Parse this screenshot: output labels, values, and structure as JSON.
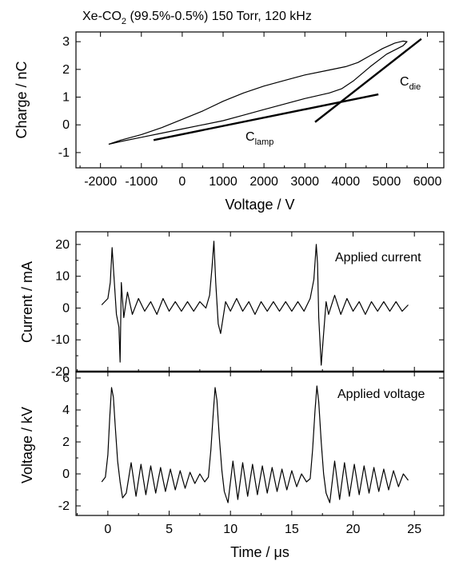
{
  "figure": {
    "title_parts": [
      "Xe-CO",
      "2",
      " (99.5%-0.5%) 150 Torr, 120 kHz"
    ]
  },
  "chart_data": [
    {
      "type": "line",
      "panel": "charge-voltage",
      "xlabel": "Voltage / V",
      "ylabel": "Charge / nC",
      "xlim": [
        -2600,
        6400
      ],
      "ylim": [
        -1.55,
        3.35
      ],
      "xticks": [
        -2000,
        -1000,
        0,
        1000,
        2000,
        3000,
        4000,
        5000,
        6000
      ],
      "yticks": [
        -1,
        0,
        1,
        2,
        3
      ],
      "grid": false,
      "series": [
        {
          "values_desc": "Lissajous loop (Q-V)",
          "x": [
            -1800,
            -1500,
            -1000,
            -500,
            0,
            500,
            1000,
            1500,
            2000,
            2500,
            3000,
            3500,
            4000,
            4300,
            4600,
            4900,
            5200,
            5400,
            5500,
            5400,
            5000,
            4600,
            4200,
            3900,
            3600,
            3300,
            3000,
            2500,
            2000,
            1500,
            1000,
            500,
            0,
            -500,
            -1000,
            -1500,
            -1800
          ],
          "y": [
            -0.7,
            -0.55,
            -0.35,
            -0.1,
            0.2,
            0.5,
            0.85,
            1.15,
            1.4,
            1.6,
            1.8,
            1.95,
            2.1,
            2.25,
            2.5,
            2.75,
            2.95,
            3.02,
            3.0,
            2.85,
            2.55,
            2.1,
            1.6,
            1.3,
            1.15,
            1.05,
            0.95,
            0.75,
            0.55,
            0.35,
            0.15,
            0.0,
            -0.15,
            -0.3,
            -0.45,
            -0.6,
            -0.7
          ]
        }
      ],
      "fit_lines": [
        {
          "name": "C",
          "sub": "lamp",
          "x": [
            -700,
            4800
          ],
          "y": [
            -0.55,
            1.1
          ]
        },
        {
          "name": "C",
          "sub": "die",
          "x": [
            3250,
            5850
          ],
          "y": [
            0.1,
            3.1
          ]
        }
      ]
    },
    {
      "type": "line",
      "panel": "current",
      "ylabel": "Current / mA",
      "xlim": [
        -2.6,
        27.4
      ],
      "ylim": [
        -20,
        24
      ],
      "yticks": [
        -20,
        -10,
        0,
        10,
        20
      ],
      "annotation": "Applied current",
      "grid": false,
      "series": [
        {
          "x": [
            -0.5,
            0.0,
            0.2,
            0.35,
            0.5,
            0.7,
            0.9,
            1.0,
            1.1,
            1.3,
            1.6,
            2.0,
            2.5,
            3.0,
            3.5,
            4.0,
            4.5,
            5.0,
            5.5,
            6.0,
            6.5,
            7.0,
            7.5,
            8.0,
            8.3,
            8.5,
            8.65,
            8.8,
            9.0,
            9.2,
            9.4,
            9.6,
            10.0,
            10.5,
            11.0,
            11.5,
            12.0,
            12.5,
            13.0,
            13.5,
            14.0,
            14.5,
            15.0,
            15.5,
            16.0,
            16.5,
            16.8,
            17.0,
            17.1,
            17.2,
            17.4,
            17.6,
            17.8,
            18.0,
            18.5,
            19.0,
            19.5,
            20.0,
            20.5,
            21.0,
            21.5,
            22.0,
            22.5,
            23.0,
            23.5,
            24.0,
            24.5
          ],
          "y": [
            1,
            3,
            8,
            19,
            10,
            -2,
            -6,
            -17,
            8,
            -3,
            5,
            -2,
            3,
            -1,
            2,
            -2,
            3,
            -1,
            2,
            -1,
            2,
            -1,
            2,
            0,
            4,
            13,
            21,
            8,
            -5,
            -8,
            -3,
            2,
            -1,
            3,
            -1,
            2,
            -2,
            2,
            -1,
            2,
            -1,
            2,
            -1,
            2,
            -1,
            3,
            9,
            20,
            14,
            -3,
            -18,
            -8,
            2,
            -2,
            4,
            -2,
            3,
            -1,
            2,
            -2,
            2,
            -1,
            2,
            -1,
            2,
            -1,
            1
          ]
        }
      ]
    },
    {
      "type": "line",
      "panel": "voltage",
      "xlabel": "Time / μs",
      "ylabel": "Voltage / kV",
      "xlim": [
        -2.6,
        27.4
      ],
      "ylim": [
        -2.6,
        6.4
      ],
      "xticks": [
        0,
        5,
        10,
        15,
        20,
        25
      ],
      "yticks": [
        -2,
        0,
        2,
        4,
        6
      ],
      "annotation": "Applied voltage",
      "grid": false,
      "series": [
        {
          "x": [
            -0.5,
            -0.2,
            0.0,
            0.15,
            0.3,
            0.45,
            0.6,
            0.8,
            1.0,
            1.2,
            1.5,
            1.9,
            2.3,
            2.7,
            3.1,
            3.5,
            3.9,
            4.3,
            4.7,
            5.1,
            5.5,
            5.9,
            6.3,
            6.7,
            7.1,
            7.5,
            7.9,
            8.2,
            8.4,
            8.6,
            8.75,
            8.9,
            9.1,
            9.3,
            9.5,
            9.8,
            10.2,
            10.6,
            11.0,
            11.4,
            11.8,
            12.2,
            12.6,
            13.0,
            13.4,
            13.8,
            14.2,
            14.6,
            15.0,
            15.4,
            15.8,
            16.2,
            16.5,
            16.7,
            16.9,
            17.05,
            17.2,
            17.4,
            17.6,
            17.8,
            18.1,
            18.5,
            18.9,
            19.3,
            19.7,
            20.1,
            20.5,
            20.9,
            21.3,
            21.7,
            22.1,
            22.5,
            22.9,
            23.3,
            23.7,
            24.1,
            24.5
          ],
          "y": [
            -0.5,
            -0.2,
            1.2,
            3.5,
            5.4,
            4.8,
            3.0,
            0.8,
            -0.5,
            -1.5,
            -1.2,
            0.7,
            -1.4,
            0.6,
            -1.3,
            0.5,
            -1.2,
            0.4,
            -1.1,
            0.3,
            -1.0,
            0.2,
            -0.9,
            0.1,
            -0.6,
            0.0,
            -0.5,
            -0.2,
            1.5,
            3.8,
            5.4,
            4.6,
            2.2,
            0.2,
            -1.1,
            -1.8,
            0.8,
            -1.6,
            0.7,
            -1.4,
            0.6,
            -1.3,
            0.5,
            -1.2,
            0.4,
            -1.1,
            0.3,
            -1.0,
            0.2,
            -0.8,
            0.0,
            -0.5,
            -0.3,
            1.5,
            4.0,
            5.5,
            4.5,
            2.0,
            0.0,
            -1.2,
            -1.8,
            0.8,
            -1.6,
            0.7,
            -1.4,
            0.6,
            -1.3,
            0.5,
            -1.2,
            0.4,
            -1.1,
            0.3,
            -1.0,
            0.2,
            -0.8,
            0.0,
            -0.4
          ]
        }
      ]
    }
  ]
}
